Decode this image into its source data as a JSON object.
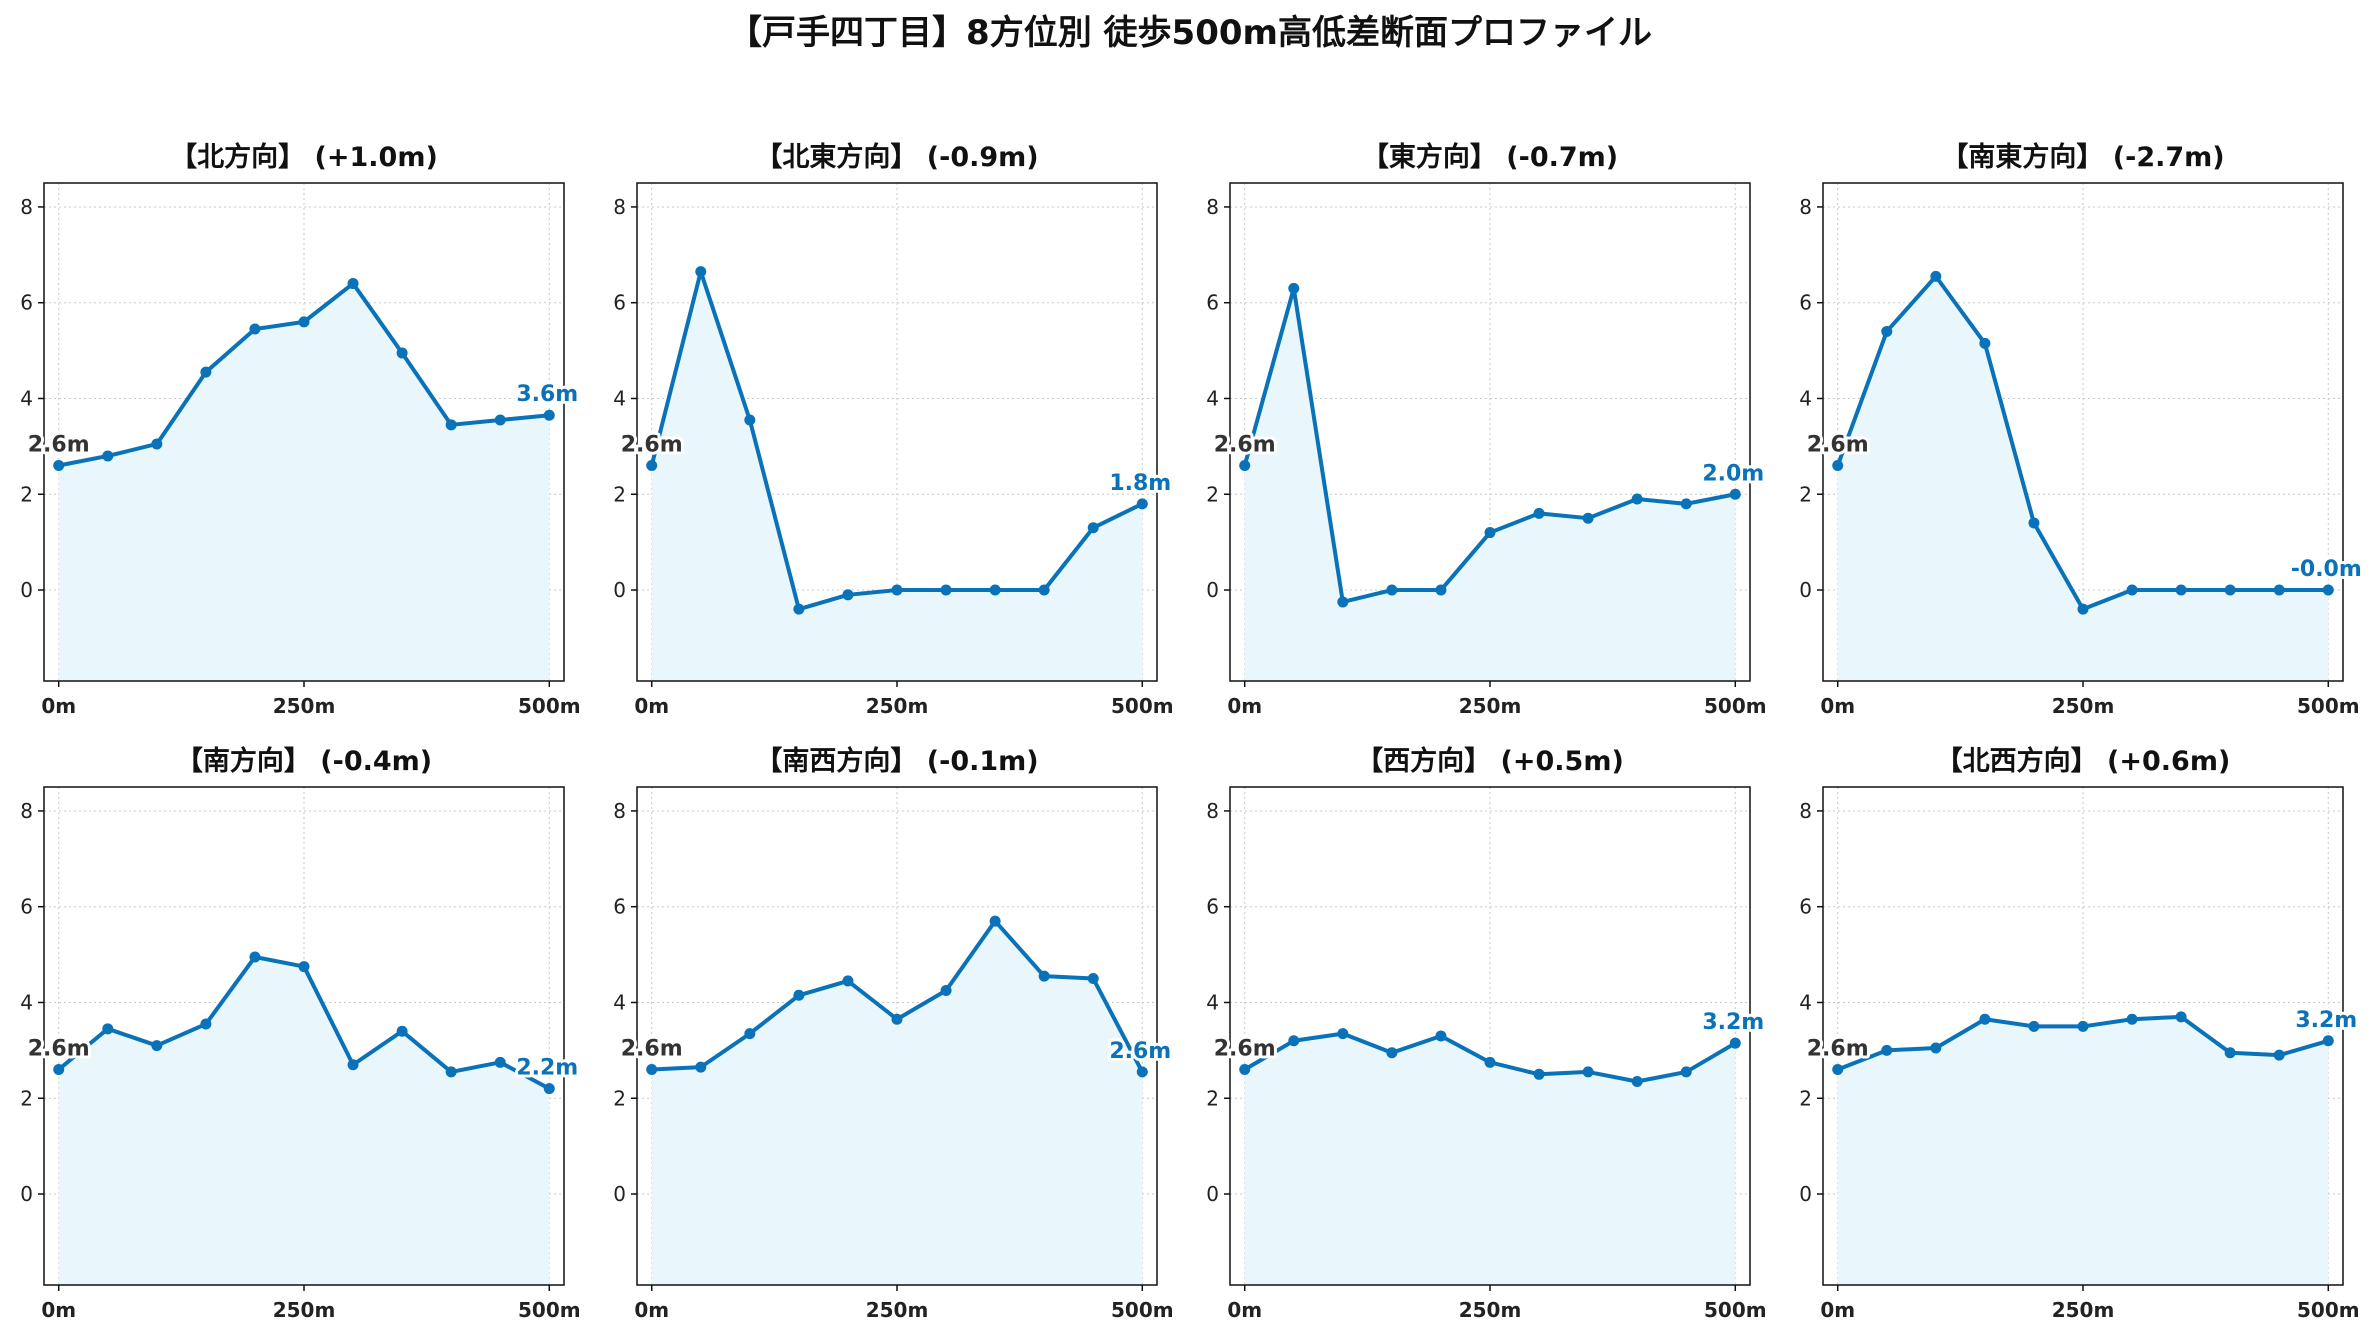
{
  "title": "【戸手四丁目】8方位別 徒歩500m高低差断面プロファイル",
  "colors": {
    "line": "#0a72b8",
    "fill": "#e9f6fb",
    "start_label": "#333333",
    "end_label": "#0a72b8",
    "grid": "#c8c8c8"
  },
  "chart_data": [
    {
      "type": "line",
      "title": "【北方向】 (+1.0m)",
      "x": [
        0,
        50,
        100,
        150,
        200,
        250,
        300,
        350,
        400,
        450,
        500
      ],
      "values": [
        2.6,
        2.8,
        3.05,
        4.55,
        5.45,
        5.6,
        6.4,
        4.95,
        3.45,
        3.55,
        3.65
      ],
      "start_label": "2.6m",
      "end_label": "3.6m",
      "ylim": [
        -1.9,
        8.5
      ],
      "xlim": [
        -15,
        515
      ],
      "yticks": [
        0,
        2,
        4,
        6,
        8
      ],
      "xticks": [
        {
          "v": 0,
          "label": "0m"
        },
        {
          "v": 250,
          "label": "250m"
        },
        {
          "v": 500,
          "label": "500m"
        }
      ],
      "grid": true
    },
    {
      "type": "line",
      "title": "【北東方向】 (-0.9m)",
      "x": [
        0,
        50,
        100,
        150,
        200,
        250,
        300,
        350,
        400,
        450,
        500
      ],
      "values": [
        2.6,
        6.65,
        3.55,
        -0.4,
        -0.1,
        0.0,
        0.0,
        0.0,
        0.0,
        1.3,
        1.8
      ],
      "start_label": "2.6m",
      "end_label": "1.8m",
      "ylim": [
        -1.9,
        8.5
      ],
      "xlim": [
        -15,
        515
      ],
      "yticks": [
        0,
        2,
        4,
        6,
        8
      ],
      "xticks": [
        {
          "v": 0,
          "label": "0m"
        },
        {
          "v": 250,
          "label": "250m"
        },
        {
          "v": 500,
          "label": "500m"
        }
      ],
      "grid": true
    },
    {
      "type": "line",
      "title": "【東方向】 (-0.7m)",
      "x": [
        0,
        50,
        100,
        150,
        200,
        250,
        300,
        350,
        400,
        450,
        500
      ],
      "values": [
        2.6,
        6.3,
        -0.25,
        0.0,
        0.0,
        1.2,
        1.6,
        1.5,
        1.9,
        1.8,
        2.0
      ],
      "start_label": "2.6m",
      "end_label": "2.0m",
      "ylim": [
        -1.9,
        8.5
      ],
      "xlim": [
        -15,
        515
      ],
      "yticks": [
        0,
        2,
        4,
        6,
        8
      ],
      "xticks": [
        {
          "v": 0,
          "label": "0m"
        },
        {
          "v": 250,
          "label": "250m"
        },
        {
          "v": 500,
          "label": "500m"
        }
      ],
      "grid": true
    },
    {
      "type": "line",
      "title": "【南東方向】 (-2.7m)",
      "x": [
        0,
        50,
        100,
        150,
        200,
        250,
        300,
        350,
        400,
        450,
        500
      ],
      "values": [
        2.6,
        5.4,
        6.55,
        5.15,
        1.4,
        -0.4,
        0.0,
        0.0,
        0.0,
        0.0,
        0.0
      ],
      "start_label": "2.6m",
      "end_label": "-0.0m",
      "ylim": [
        -1.9,
        8.5
      ],
      "xlim": [
        -15,
        515
      ],
      "yticks": [
        0,
        2,
        4,
        6,
        8
      ],
      "xticks": [
        {
          "v": 0,
          "label": "0m"
        },
        {
          "v": 250,
          "label": "250m"
        },
        {
          "v": 500,
          "label": "500m"
        }
      ],
      "grid": true
    },
    {
      "type": "line",
      "title": "【南方向】 (-0.4m)",
      "x": [
        0,
        50,
        100,
        150,
        200,
        250,
        300,
        350,
        400,
        450,
        500
      ],
      "values": [
        2.6,
        3.45,
        3.1,
        3.55,
        4.95,
        4.75,
        2.7,
        3.4,
        2.55,
        2.75,
        2.2
      ],
      "start_label": "2.6m",
      "end_label": "2.2m",
      "ylim": [
        -1.9,
        8.5
      ],
      "xlim": [
        -15,
        515
      ],
      "yticks": [
        0,
        2,
        4,
        6,
        8
      ],
      "xticks": [
        {
          "v": 0,
          "label": "0m"
        },
        {
          "v": 250,
          "label": "250m"
        },
        {
          "v": 500,
          "label": "500m"
        }
      ],
      "grid": true
    },
    {
      "type": "line",
      "title": "【南西方向】 (-0.1m)",
      "x": [
        0,
        50,
        100,
        150,
        200,
        250,
        300,
        350,
        400,
        450,
        500
      ],
      "values": [
        2.6,
        2.65,
        3.35,
        4.15,
        4.45,
        3.65,
        4.25,
        5.7,
        4.55,
        4.5,
        2.55
      ],
      "start_label": "2.6m",
      "end_label": "2.6m",
      "ylim": [
        -1.9,
        8.5
      ],
      "xlim": [
        -15,
        515
      ],
      "yticks": [
        0,
        2,
        4,
        6,
        8
      ],
      "xticks": [
        {
          "v": 0,
          "label": "0m"
        },
        {
          "v": 250,
          "label": "250m"
        },
        {
          "v": 500,
          "label": "500m"
        }
      ],
      "grid": true
    },
    {
      "type": "line",
      "title": "【西方向】 (+0.5m)",
      "x": [
        0,
        50,
        100,
        150,
        200,
        250,
        300,
        350,
        400,
        450,
        500
      ],
      "values": [
        2.6,
        3.2,
        3.35,
        2.95,
        3.3,
        2.75,
        2.5,
        2.55,
        2.35,
        2.55,
        3.15
      ],
      "start_label": "2.6m",
      "end_label": "3.2m",
      "ylim": [
        -1.9,
        8.5
      ],
      "xlim": [
        -15,
        515
      ],
      "yticks": [
        0,
        2,
        4,
        6,
        8
      ],
      "xticks": [
        {
          "v": 0,
          "label": "0m"
        },
        {
          "v": 250,
          "label": "250m"
        },
        {
          "v": 500,
          "label": "500m"
        }
      ],
      "grid": true
    },
    {
      "type": "line",
      "title": "【北西方向】 (+0.6m)",
      "x": [
        0,
        50,
        100,
        150,
        200,
        250,
        300,
        350,
        400,
        450,
        500
      ],
      "values": [
        2.6,
        3.0,
        3.05,
        3.65,
        3.5,
        3.5,
        3.65,
        3.7,
        2.95,
        2.9,
        3.2
      ],
      "start_label": "2.6m",
      "end_label": "3.2m",
      "ylim": [
        -1.9,
        8.5
      ],
      "xlim": [
        -15,
        515
      ],
      "yticks": [
        0,
        2,
        4,
        6,
        8
      ],
      "xticks": [
        {
          "v": 0,
          "label": "0m"
        },
        {
          "v": 250,
          "label": "250m"
        },
        {
          "v": 500,
          "label": "500m"
        }
      ],
      "grid": true
    }
  ]
}
